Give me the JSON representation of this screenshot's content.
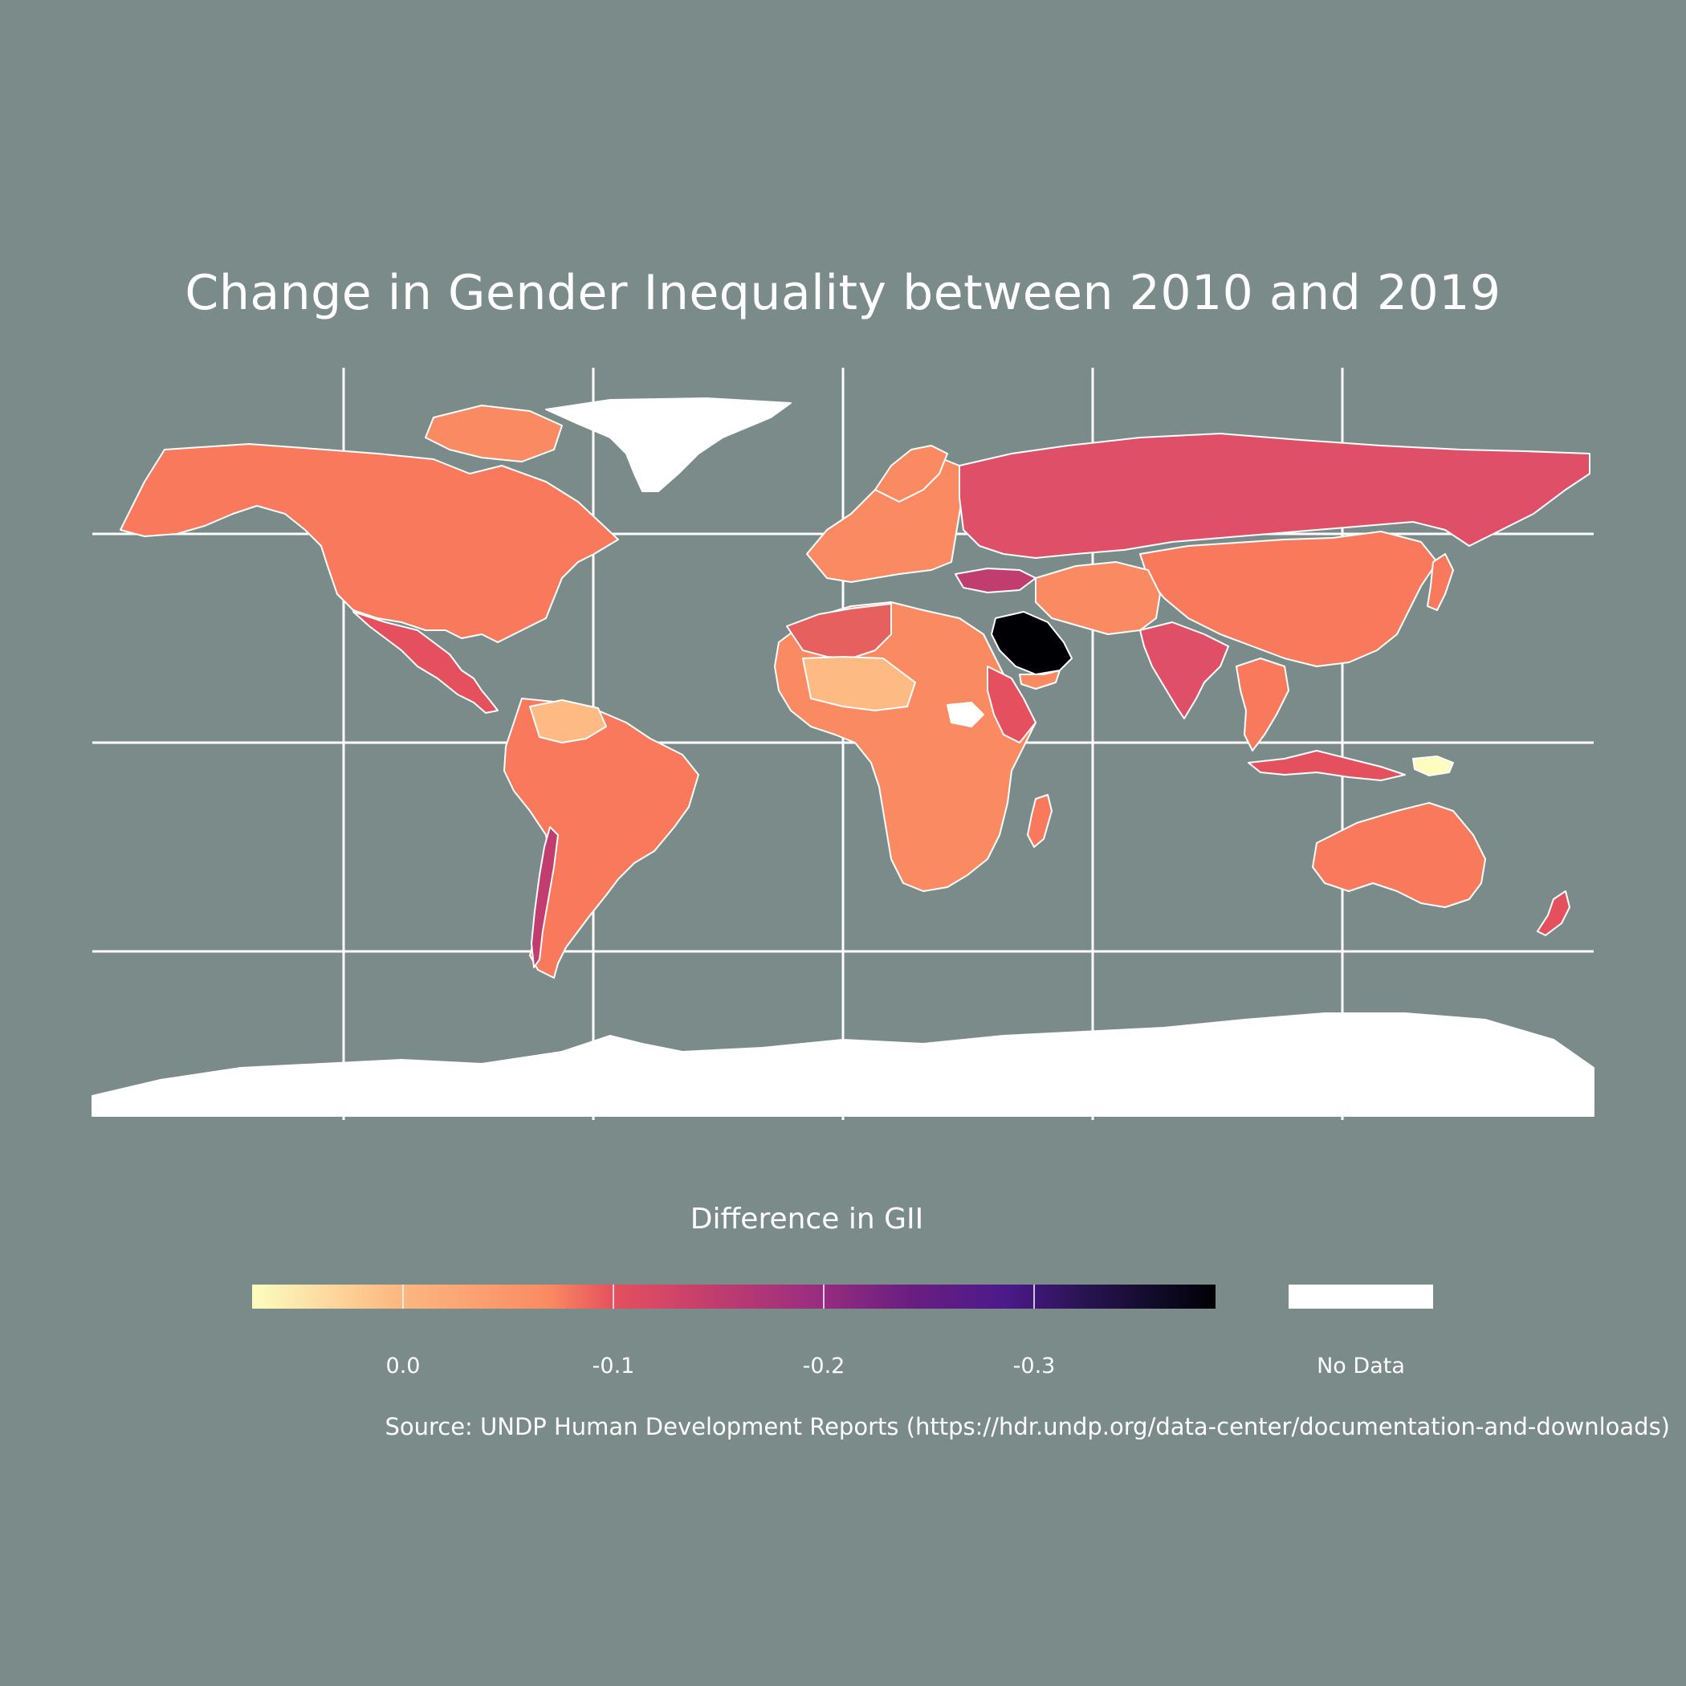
{
  "title": "Change in Gender Inequality between 2010 and 2019",
  "legend": {
    "title": "Difference in GII",
    "ticks": [
      "0.0",
      "-0.1",
      "-0.2",
      "-0.3"
    ],
    "tick_values": [
      0.0,
      -0.1,
      -0.2,
      -0.3
    ],
    "range": [
      0.04,
      -0.38
    ],
    "no_data_label": "No Data",
    "palette": "magma (reversed)",
    "colors": {
      "low_change": "#fcfdbf",
      "small_decrease": "#fa8a61",
      "medium_decrease": "#e5505f",
      "large_decrease": "#c13d6e",
      "max_decrease": "#000004",
      "no_data": "#ffffff"
    }
  },
  "source": "Source: UNDP Human Development Reports (https://hdr.undp.org/data-center/documentation-and-downloads)",
  "background_color": "#7a8b8a"
}
